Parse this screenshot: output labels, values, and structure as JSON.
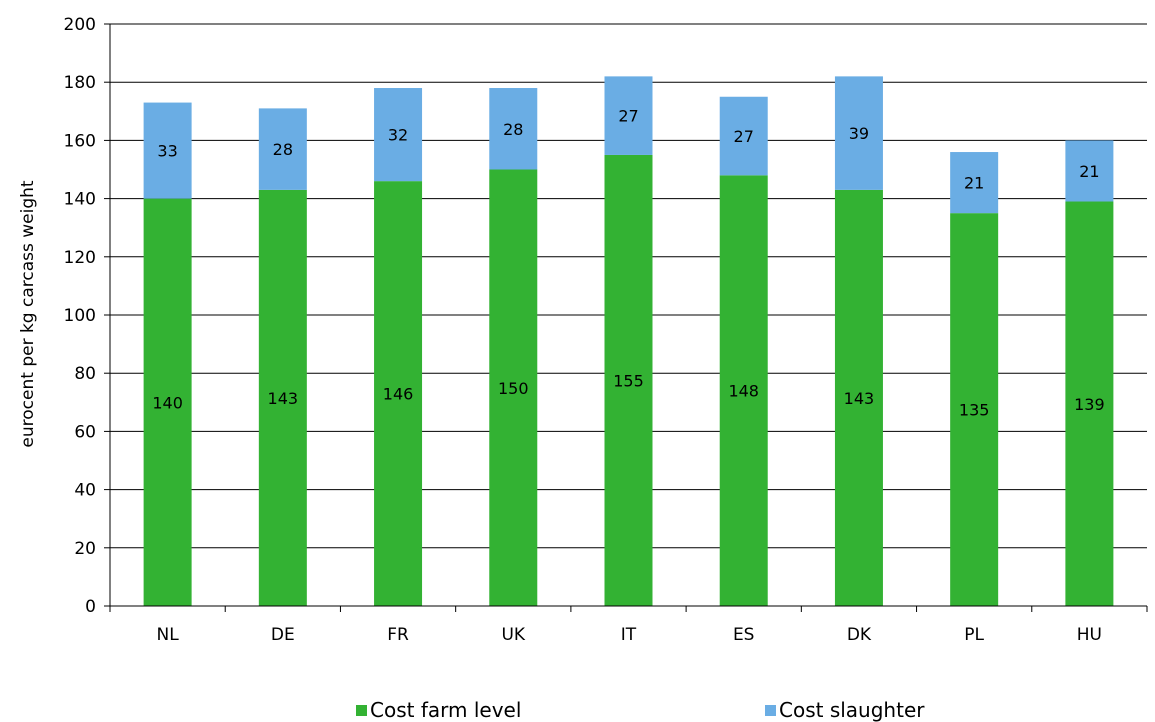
{
  "chart_data": {
    "type": "bar",
    "stacked": true,
    "categories": [
      "NL",
      "DE",
      "FR",
      "UK",
      "IT",
      "ES",
      "DK",
      "PL",
      "HU"
    ],
    "series": [
      {
        "name": "Cost farm level",
        "values": [
          140,
          143,
          146,
          150,
          155,
          148,
          143,
          135,
          139
        ],
        "color": "#33b233"
      },
      {
        "name": "Cost slaughter",
        "values": [
          33,
          28,
          32,
          28,
          27,
          27,
          39,
          21,
          21
        ],
        "color": "#6aade4"
      }
    ],
    "title": "",
    "xlabel": "",
    "ylabel": "eurocent per kg carcass weight",
    "ylim": [
      0,
      200
    ],
    "yticks": [
      0,
      20,
      40,
      60,
      80,
      100,
      120,
      140,
      160,
      180,
      200
    ],
    "grid": true,
    "legend_position": "bottom"
  }
}
